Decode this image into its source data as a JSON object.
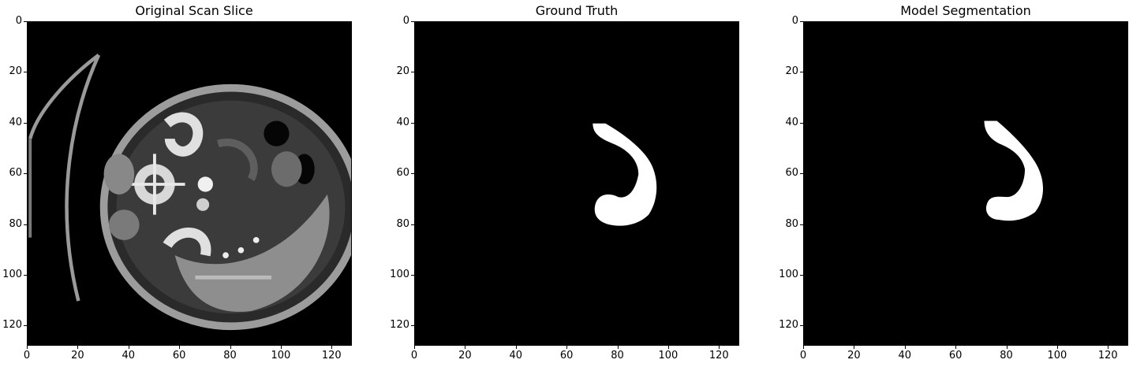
{
  "panels": [
    {
      "id": "original",
      "title": "Original Scan Slice",
      "image_content": "axial abdominal CT slice",
      "x_ticks": [
        "0",
        "20",
        "40",
        "60",
        "80",
        "100",
        "120"
      ],
      "y_ticks": [
        "0",
        "20",
        "40",
        "60",
        "80",
        "100",
        "120"
      ]
    },
    {
      "id": "ground-truth",
      "title": "Ground Truth",
      "image_content": "binary mask, white C-shaped region",
      "x_ticks": [
        "0",
        "20",
        "40",
        "60",
        "80",
        "100",
        "120"
      ],
      "y_ticks": [
        "0",
        "20",
        "40",
        "60",
        "80",
        "100",
        "120"
      ]
    },
    {
      "id": "model",
      "title": "Model Segmentation",
      "image_content": "binary mask, white C-shaped region",
      "x_ticks": [
        "0",
        "20",
        "40",
        "60",
        "80",
        "100",
        "120"
      ],
      "y_ticks": [
        "0",
        "20",
        "40",
        "60",
        "80",
        "100",
        "120"
      ]
    }
  ],
  "colors": {
    "background": "#000000",
    "mask": "#ffffff",
    "text": "#000000"
  }
}
